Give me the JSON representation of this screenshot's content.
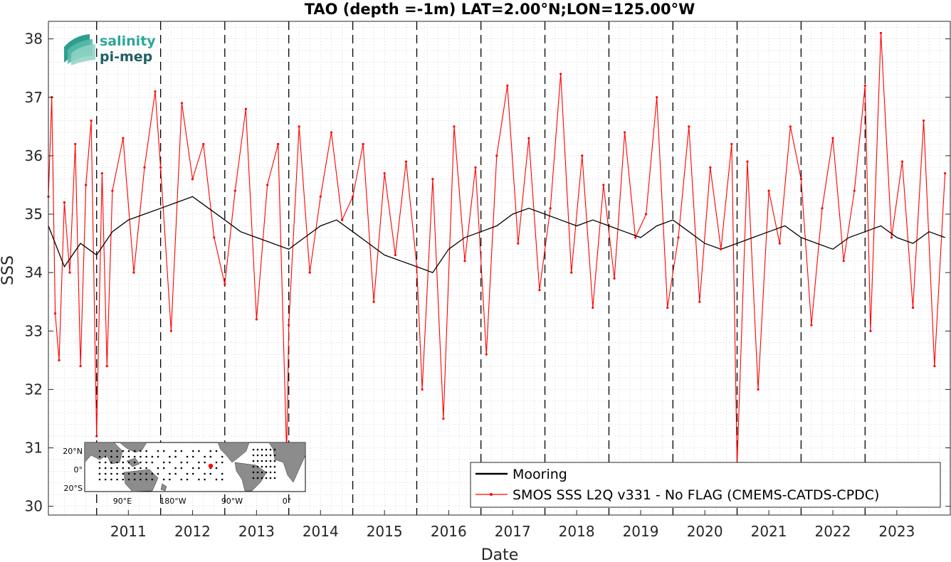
{
  "chart_data": {
    "type": "line",
    "title": "TAO (depth =-1m) LAT=2.00°N;LON=125.00°W",
    "xlabel": "Date",
    "ylabel": "SSS",
    "xlim": [
      "2010-04-01",
      "2024-05-01"
    ],
    "ylim": [
      29.85,
      38.3
    ],
    "x_ticks": [
      "2011",
      "2012",
      "2013",
      "2014",
      "2015",
      "2016",
      "2017",
      "2018",
      "2019",
      "2020",
      "2021",
      "2022",
      "2023"
    ],
    "y_ticks": [
      30,
      31,
      32,
      33,
      34,
      35,
      36,
      37,
      38
    ],
    "grid": "minor dotted",
    "year_boundaries": [
      "2011-01-01",
      "2012-01-01",
      "2013-01-01",
      "2014-01-01",
      "2015-01-01",
      "2016-01-01",
      "2017-01-01",
      "2018-01-01",
      "2019-01-01",
      "2020-01-01",
      "2021-01-01",
      "2022-01-01",
      "2023-01-01"
    ],
    "legend_placement": "bottom-right",
    "series": [
      {
        "name": "Mooring",
        "color": "#000000",
        "x": [
          "2010-04-01",
          "2010-07-01",
          "2010-10-01",
          "2011-01-01",
          "2011-04-01",
          "2011-07-01",
          "2011-10-01",
          "2012-01-01",
          "2012-04-01",
          "2012-07-01",
          "2012-10-01",
          "2013-01-01",
          "2013-04-01",
          "2013-07-01",
          "2013-10-01",
          "2014-01-01",
          "2014-04-01",
          "2014-07-01",
          "2014-10-01",
          "2015-01-01",
          "2015-04-01",
          "2015-07-01",
          "2015-10-01",
          "2016-01-01",
          "2016-04-01",
          "2016-07-01",
          "2016-10-01",
          "2017-01-01",
          "2017-04-01",
          "2017-07-01",
          "2017-10-01",
          "2018-01-01",
          "2018-04-01",
          "2018-07-01",
          "2018-10-01",
          "2019-01-01",
          "2019-04-01",
          "2019-07-01",
          "2019-10-01",
          "2020-01-01",
          "2020-04-01",
          "2020-07-01",
          "2020-10-01",
          "2021-01-01",
          "2021-04-01",
          "2021-07-01",
          "2021-10-01",
          "2022-01-01",
          "2022-04-01",
          "2022-07-01",
          "2022-10-01",
          "2023-01-01",
          "2023-04-01",
          "2023-07-01",
          "2023-10-01",
          "2024-01-01",
          "2024-04-01"
        ],
        "values": [
          34.8,
          34.1,
          34.5,
          34.3,
          34.7,
          34.9,
          35.0,
          35.1,
          35.2,
          35.3,
          35.1,
          34.9,
          34.7,
          34.6,
          34.5,
          34.4,
          34.6,
          34.8,
          34.9,
          34.7,
          34.5,
          34.3,
          34.2,
          34.1,
          34.0,
          34.4,
          34.6,
          34.7,
          34.8,
          35.0,
          35.1,
          35.0,
          34.9,
          34.8,
          34.9,
          34.8,
          34.7,
          34.6,
          34.8,
          34.9,
          34.7,
          34.5,
          34.4,
          34.5,
          34.6,
          34.7,
          34.8,
          34.6,
          34.5,
          34.4,
          34.6,
          34.7,
          34.8,
          34.6,
          34.5,
          34.7,
          34.6
        ]
      },
      {
        "name": "SMOS SSS L2Q v331 - No FLAG  (CMEMS-CATDS-CPDC)",
        "color": "#ff0000",
        "x": [
          "2010-04-01",
          "2010-04-20",
          "2010-05-10",
          "2010-06-01",
          "2010-07-01",
          "2010-08-01",
          "2010-09-01",
          "2010-10-01",
          "2010-11-01",
          "2010-12-01",
          "2011-01-01",
          "2011-02-01",
          "2011-03-01",
          "2011-04-01",
          "2011-06-01",
          "2011-08-01",
          "2011-10-01",
          "2011-12-01",
          "2012-01-01",
          "2012-03-01",
          "2012-05-01",
          "2012-07-01",
          "2012-09-01",
          "2012-11-01",
          "2013-01-01",
          "2013-03-01",
          "2013-05-01",
          "2013-07-01",
          "2013-09-01",
          "2013-11-01",
          "2013-12-20",
          "2014-01-01",
          "2014-03-01",
          "2014-05-01",
          "2014-07-01",
          "2014-09-01",
          "2014-11-01",
          "2015-01-01",
          "2015-03-01",
          "2015-05-01",
          "2015-07-01",
          "2015-09-01",
          "2015-11-01",
          "2016-01-01",
          "2016-02-01",
          "2016-04-01",
          "2016-06-01",
          "2016-08-01",
          "2016-10-01",
          "2016-12-01",
          "2017-02-01",
          "2017-04-01",
          "2017-06-01",
          "2017-08-01",
          "2017-10-01",
          "2017-12-01",
          "2018-02-01",
          "2018-04-01",
          "2018-06-01",
          "2018-08-01",
          "2018-10-01",
          "2018-12-01",
          "2019-02-01",
          "2019-04-01",
          "2019-06-01",
          "2019-08-01",
          "2019-10-01",
          "2019-12-01",
          "2020-02-01",
          "2020-04-01",
          "2020-06-01",
          "2020-08-01",
          "2020-10-01",
          "2020-12-01",
          "2021-01-01",
          "2021-03-01",
          "2021-05-01",
          "2021-07-01",
          "2021-09-01",
          "2021-11-01",
          "2022-01-01",
          "2022-03-01",
          "2022-05-01",
          "2022-07-01",
          "2022-09-01",
          "2022-11-01",
          "2023-01-01",
          "2023-02-01",
          "2023-04-01",
          "2023-06-01",
          "2023-08-01",
          "2023-10-01",
          "2023-12-01",
          "2024-02-01",
          "2024-04-01"
        ],
        "values": [
          35.3,
          37.0,
          33.3,
          32.5,
          35.2,
          34.0,
          36.2,
          32.4,
          35.5,
          36.6,
          31.2,
          35.7,
          32.4,
          35.4,
          36.3,
          34.0,
          35.8,
          37.1,
          35.8,
          33.0,
          36.9,
          35.6,
          36.2,
          34.6,
          33.8,
          35.4,
          36.8,
          33.2,
          35.5,
          36.2,
          30.9,
          33.1,
          36.5,
          34.0,
          35.3,
          36.4,
          34.9,
          35.3,
          36.2,
          33.5,
          35.7,
          34.3,
          35.9,
          34.1,
          32.0,
          35.6,
          31.5,
          36.5,
          34.2,
          35.8,
          32.6,
          36.0,
          37.2,
          34.5,
          36.3,
          33.7,
          35.1,
          37.4,
          34.0,
          36.0,
          33.4,
          35.5,
          33.9,
          36.4,
          34.6,
          35.0,
          37.0,
          33.4,
          34.6,
          36.5,
          33.5,
          35.8,
          34.4,
          36.2,
          30.7,
          35.9,
          32.0,
          35.4,
          34.5,
          36.5,
          35.6,
          33.1,
          35.1,
          36.3,
          34.2,
          35.4,
          37.2,
          33.0,
          38.1,
          34.6,
          35.9,
          33.4,
          36.6,
          32.4,
          35.7
        ]
      }
    ],
    "inset_map": {
      "lat_labels": [
        "20°N",
        "0°",
        "20°S"
      ],
      "lon_labels": [
        "90°E",
        "180°W",
        "90°W",
        "0°"
      ]
    }
  },
  "logo": {
    "line1": "salinity",
    "line2": "pi-mep"
  }
}
